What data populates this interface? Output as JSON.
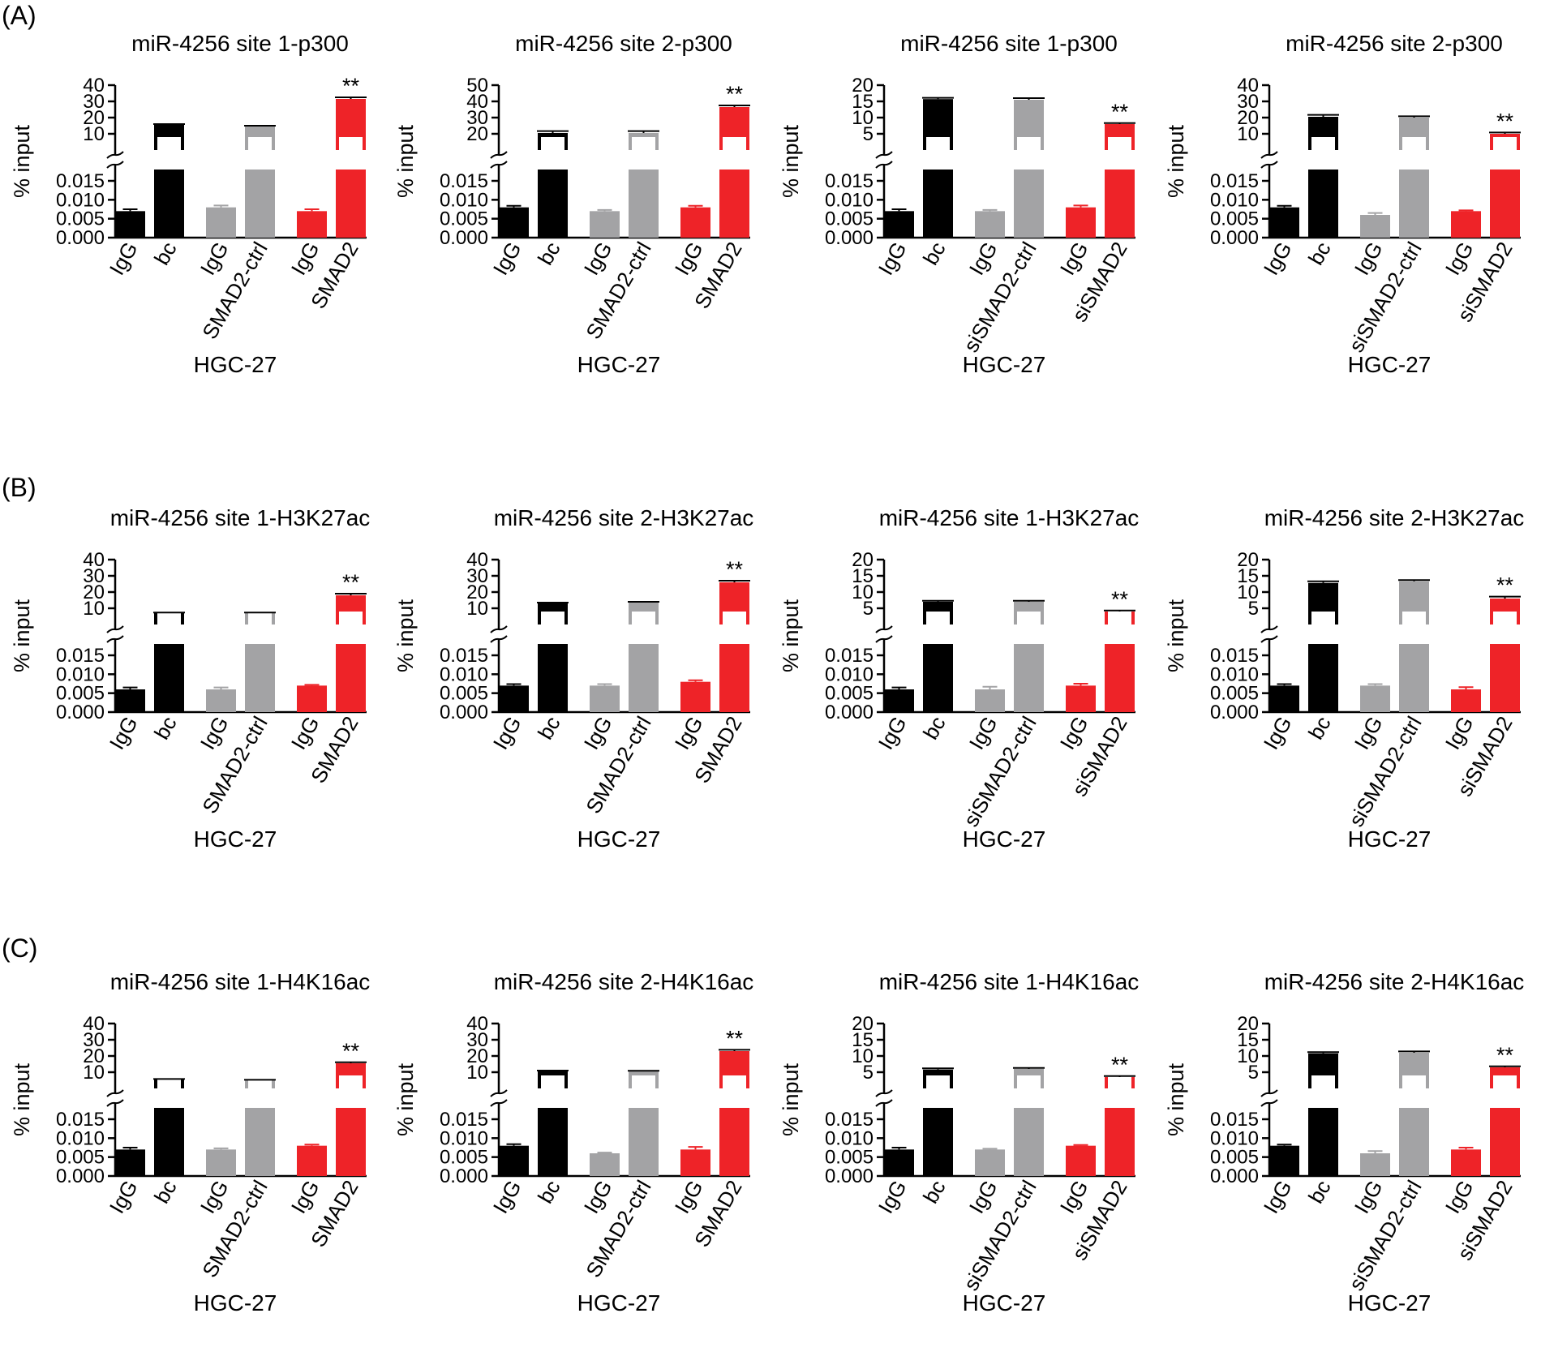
{
  "figure": {
    "panel_labels": [
      "(A)",
      "(B)",
      "(C)"
    ],
    "colors": {
      "black": "#000000",
      "gray": "#a3a3a5",
      "red": "#ee2328",
      "axis": "#000000"
    }
  },
  "chart_data": [
    {
      "type": "bar",
      "title": "miR-4256 site 1-p300",
      "ylabel": "% input",
      "xlabel": "HGC-27",
      "categories": [
        "IgG",
        "bc",
        "IgG",
        "SMAD2-ctrl",
        "IgG",
        "SMAD2"
      ],
      "values": [
        0.007,
        15.5,
        0.008,
        14.5,
        0.007,
        31.5
      ],
      "errors": [
        0.0005,
        0.5,
        0.0005,
        0.5,
        0.0005,
        1.0
      ],
      "colors": [
        "#000000",
        "#000000",
        "#a3a3a5",
        "#a3a3a5",
        "#ee2328",
        "#ee2328"
      ],
      "significance": [
        "",
        "",
        "",
        "",
        "",
        "**"
      ],
      "lower_axis": {
        "ylim": [
          0,
          0.018
        ],
        "ticks": [
          "0.000",
          "0.005",
          "0.010",
          "0.015"
        ],
        "tick_values": [
          0,
          0.005,
          0.01,
          0.015
        ]
      },
      "upper_axis": {
        "ylim": [
          0,
          40
        ],
        "ticks": [
          "10",
          "20",
          "30",
          "40"
        ],
        "tick_values": [
          10,
          20,
          30,
          40
        ]
      }
    },
    {
      "type": "bar",
      "title": "miR-4256 site 2-p300",
      "ylabel": "% input",
      "xlabel": "HGC-27",
      "categories": [
        "IgG",
        "bc",
        "IgG",
        "SMAD2-ctrl",
        "IgG",
        "SMAD2"
      ],
      "values": [
        0.008,
        20.5,
        0.007,
        20.5,
        0.008,
        36.5
      ],
      "errors": [
        0.0004,
        1.2,
        0.0003,
        1.2,
        0.0004,
        1.0
      ],
      "colors": [
        "#000000",
        "#000000",
        "#a3a3a5",
        "#a3a3a5",
        "#ee2328",
        "#ee2328"
      ],
      "significance": [
        "",
        "",
        "",
        "",
        "",
        "**"
      ],
      "lower_axis": {
        "ylim": [
          0,
          0.018
        ],
        "ticks": [
          "0.000",
          "0.005",
          "0.010",
          "0.015"
        ],
        "tick_values": [
          0,
          0.005,
          0.01,
          0.015
        ]
      },
      "upper_axis": {
        "ylim": [
          10,
          50
        ],
        "ticks": [
          "20",
          "30",
          "40",
          "50"
        ],
        "tick_values": [
          20,
          30,
          40,
          50
        ]
      }
    },
    {
      "type": "bar",
      "title": "miR-4256 site 1-p300",
      "ylabel": "% input",
      "xlabel": "HGC-27",
      "categories": [
        "IgG",
        "bc",
        "IgG",
        "siSMAD2-ctrl",
        "IgG",
        "siSMAD2"
      ],
      "values": [
        0.007,
        15.7,
        0.007,
        15.5,
        0.008,
        8.0
      ],
      "errors": [
        0.0005,
        0.4,
        0.0003,
        0.5,
        0.0005,
        0.3
      ],
      "colors": [
        "#000000",
        "#000000",
        "#a3a3a5",
        "#a3a3a5",
        "#ee2328",
        "#ee2328"
      ],
      "significance": [
        "",
        "",
        "",
        "",
        "",
        "**"
      ],
      "lower_axis": {
        "ylim": [
          0,
          0.018
        ],
        "ticks": [
          "0.000",
          "0.005",
          "0.010",
          "0.015"
        ],
        "tick_values": [
          0,
          0.005,
          0.01,
          0.015
        ]
      },
      "upper_axis": {
        "ylim": [
          0,
          20
        ],
        "ticks": [
          "5",
          "10",
          "15",
          "20"
        ],
        "tick_values": [
          5,
          10,
          15,
          20
        ]
      }
    },
    {
      "type": "bar",
      "title": "miR-4256 site 2-p300",
      "ylabel": "% input",
      "xlabel": "HGC-27",
      "categories": [
        "IgG",
        "bc",
        "IgG",
        "siSMAD2-ctrl",
        "IgG",
        "siSMAD2"
      ],
      "values": [
        0.008,
        20.5,
        0.006,
        20.0,
        0.007,
        10.0
      ],
      "errors": [
        0.0004,
        1.2,
        0.0005,
        0.8,
        0.0002,
        0.8
      ],
      "colors": [
        "#000000",
        "#000000",
        "#a3a3a5",
        "#a3a3a5",
        "#ee2328",
        "#ee2328"
      ],
      "significance": [
        "",
        "",
        "",
        "",
        "",
        "**"
      ],
      "lower_axis": {
        "ylim": [
          0,
          0.018
        ],
        "ticks": [
          "0.000",
          "0.005",
          "0.010",
          "0.015"
        ],
        "tick_values": [
          0,
          0.005,
          0.01,
          0.015
        ]
      },
      "upper_axis": {
        "ylim": [
          0,
          40
        ],
        "ticks": [
          "10",
          "20",
          "30",
          "40"
        ],
        "tick_values": [
          10,
          20,
          30,
          40
        ]
      }
    },
    {
      "type": "bar",
      "title": "miR-4256 site 1-H3K27ac",
      "ylabel": "% input",
      "xlabel": "HGC-27",
      "categories": [
        "IgG",
        "bc",
        "IgG",
        "SMAD2-ctrl",
        "IgG",
        "SMAD2"
      ],
      "values": [
        0.006,
        7.0,
        0.006,
        7.0,
        0.007,
        18.0
      ],
      "errors": [
        0.0005,
        0.4,
        0.0005,
        0.4,
        0.0002,
        1.0
      ],
      "colors": [
        "#000000",
        "#000000",
        "#a3a3a5",
        "#a3a3a5",
        "#ee2328",
        "#ee2328"
      ],
      "significance": [
        "",
        "",
        "",
        "",
        "",
        "**"
      ],
      "lower_axis": {
        "ylim": [
          0,
          0.018
        ],
        "ticks": [
          "0.000",
          "0.005",
          "0.010",
          "0.015"
        ],
        "tick_values": [
          0,
          0.005,
          0.01,
          0.015
        ]
      },
      "upper_axis": {
        "ylim": [
          0,
          40
        ],
        "ticks": [
          "10",
          "20",
          "30",
          "40"
        ],
        "tick_values": [
          10,
          20,
          30,
          40
        ]
      }
    },
    {
      "type": "bar",
      "title": "miR-4256 site 2-H3K27ac",
      "ylabel": "% input",
      "xlabel": "HGC-27",
      "categories": [
        "IgG",
        "bc",
        "IgG",
        "SMAD2-ctrl",
        "IgG",
        "SMAD2"
      ],
      "values": [
        0.007,
        13.0,
        0.007,
        13.5,
        0.008,
        26.0
      ],
      "errors": [
        0.0004,
        0.5,
        0.0004,
        0.5,
        0.0004,
        1.0
      ],
      "colors": [
        "#000000",
        "#000000",
        "#a3a3a5",
        "#a3a3a5",
        "#ee2328",
        "#ee2328"
      ],
      "significance": [
        "",
        "",
        "",
        "",
        "",
        "**"
      ],
      "lower_axis": {
        "ylim": [
          0,
          0.018
        ],
        "ticks": [
          "0.000",
          "0.005",
          "0.010",
          "0.015"
        ],
        "tick_values": [
          0,
          0.005,
          0.01,
          0.015
        ]
      },
      "upper_axis": {
        "ylim": [
          0,
          40
        ],
        "ticks": [
          "10",
          "20",
          "30",
          "40"
        ],
        "tick_values": [
          10,
          20,
          30,
          40
        ]
      }
    },
    {
      "type": "bar",
      "title": "miR-4256 site 1-H3K27ac",
      "ylabel": "% input",
      "xlabel": "HGC-27",
      "categories": [
        "IgG",
        "bc",
        "IgG",
        "siSMAD2-ctrl",
        "IgG",
        "siSMAD2"
      ],
      "values": [
        0.006,
        7.0,
        0.006,
        7.0,
        0.007,
        4.0
      ],
      "errors": [
        0.0005,
        0.3,
        0.0007,
        0.3,
        0.0005,
        0.3
      ],
      "colors": [
        "#000000",
        "#000000",
        "#a3a3a5",
        "#a3a3a5",
        "#ee2328",
        "#ee2328"
      ],
      "significance": [
        "",
        "",
        "",
        "",
        "",
        "**"
      ],
      "lower_axis": {
        "ylim": [
          0,
          0.018
        ],
        "ticks": [
          "0.000",
          "0.005",
          "0.010",
          "0.015"
        ],
        "tick_values": [
          0,
          0.005,
          0.01,
          0.015
        ]
      },
      "upper_axis": {
        "ylim": [
          0,
          20
        ],
        "ticks": [
          "5",
          "10",
          "15",
          "20"
        ],
        "tick_values": [
          5,
          10,
          15,
          20
        ]
      }
    },
    {
      "type": "bar",
      "title": "miR-4256 site 2-H3K27ac",
      "ylabel": "% input",
      "xlabel": "HGC-27",
      "categories": [
        "IgG",
        "bc",
        "IgG",
        "siSMAD2-ctrl",
        "IgG",
        "siSMAD2"
      ],
      "values": [
        0.007,
        12.8,
        0.007,
        13.3,
        0.006,
        8.0
      ],
      "errors": [
        0.0004,
        0.5,
        0.0004,
        0.4,
        0.0006,
        0.6
      ],
      "colors": [
        "#000000",
        "#000000",
        "#a3a3a5",
        "#a3a3a5",
        "#ee2328",
        "#ee2328"
      ],
      "significance": [
        "",
        "",
        "",
        "",
        "",
        "**"
      ],
      "lower_axis": {
        "ylim": [
          0,
          0.018
        ],
        "ticks": [
          "0.000",
          "0.005",
          "0.010",
          "0.015"
        ],
        "tick_values": [
          0,
          0.005,
          0.01,
          0.015
        ]
      },
      "upper_axis": {
        "ylim": [
          0,
          20
        ],
        "ticks": [
          "5",
          "10",
          "15",
          "20"
        ],
        "tick_values": [
          5,
          10,
          15,
          20
        ]
      }
    },
    {
      "type": "bar",
      "title": "miR-4256 site 1-H4K16ac",
      "ylabel": "% input",
      "xlabel": "HGC-27",
      "categories": [
        "IgG",
        "bc",
        "IgG",
        "SMAD2-ctrl",
        "IgG",
        "SMAD2"
      ],
      "values": [
        0.007,
        5.5,
        0.007,
        5.0,
        0.008,
        15.5
      ],
      "errors": [
        0.0005,
        0.3,
        0.0003,
        0.3,
        0.0003,
        0.6
      ],
      "colors": [
        "#000000",
        "#000000",
        "#a3a3a5",
        "#a3a3a5",
        "#ee2328",
        "#ee2328"
      ],
      "significance": [
        "",
        "",
        "",
        "",
        "",
        "**"
      ],
      "lower_axis": {
        "ylim": [
          0,
          0.018
        ],
        "ticks": [
          "0.000",
          "0.005",
          "0.010",
          "0.015"
        ],
        "tick_values": [
          0,
          0.005,
          0.01,
          0.015
        ]
      },
      "upper_axis": {
        "ylim": [
          0,
          40
        ],
        "ticks": [
          "10",
          "20",
          "30",
          "40"
        ],
        "tick_values": [
          10,
          20,
          30,
          40
        ]
      }
    },
    {
      "type": "bar",
      "title": "miR-4256 site 2-H4K16ac",
      "ylabel": "% input",
      "xlabel": "HGC-27",
      "categories": [
        "IgG",
        "bc",
        "IgG",
        "SMAD2-ctrl",
        "IgG",
        "SMAD2"
      ],
      "values": [
        0.008,
        10.5,
        0.006,
        10.5,
        0.007,
        23.0
      ],
      "errors": [
        0.0004,
        0.5,
        0.0002,
        0.4,
        0.0007,
        0.8
      ],
      "colors": [
        "#000000",
        "#000000",
        "#a3a3a5",
        "#a3a3a5",
        "#ee2328",
        "#ee2328"
      ],
      "significance": [
        "",
        "",
        "",
        "",
        "",
        "**"
      ],
      "lower_axis": {
        "ylim": [
          0,
          0.018
        ],
        "ticks": [
          "0.000",
          "0.005",
          "0.010",
          "0.015"
        ],
        "tick_values": [
          0,
          0.005,
          0.01,
          0.015
        ]
      },
      "upper_axis": {
        "ylim": [
          0,
          40
        ],
        "ticks": [
          "10",
          "20",
          "30",
          "40"
        ],
        "tick_values": [
          10,
          20,
          30,
          40
        ]
      }
    },
    {
      "type": "bar",
      "title": "miR-4256 site 1-H4K16ac",
      "ylabel": "% input",
      "xlabel": "HGC-27",
      "categories": [
        "IgG",
        "bc",
        "IgG",
        "siSMAD2-ctrl",
        "IgG",
        "siSMAD2"
      ],
      "values": [
        0.007,
        5.8,
        0.007,
        6.0,
        0.008,
        3.5
      ],
      "errors": [
        0.0005,
        0.4,
        0.0002,
        0.3,
        0.0002,
        0.3
      ],
      "colors": [
        "#000000",
        "#000000",
        "#a3a3a5",
        "#a3a3a5",
        "#ee2328",
        "#ee2328"
      ],
      "significance": [
        "",
        "",
        "",
        "",
        "",
        "**"
      ],
      "lower_axis": {
        "ylim": [
          0,
          0.018
        ],
        "ticks": [
          "0.000",
          "0.005",
          "0.010",
          "0.015"
        ],
        "tick_values": [
          0,
          0.005,
          0.01,
          0.015
        ]
      },
      "upper_axis": {
        "ylim": [
          0,
          20
        ],
        "ticks": [
          "5",
          "10",
          "15",
          "20"
        ],
        "tick_values": [
          5,
          10,
          15,
          20
        ]
      }
    },
    {
      "type": "bar",
      "title": "miR-4256 site 2-H4K16ac",
      "ylabel": "% input",
      "xlabel": "HGC-27",
      "categories": [
        "IgG",
        "bc",
        "IgG",
        "siSMAD2-ctrl",
        "IgG",
        "siSMAD2"
      ],
      "values": [
        0.008,
        10.8,
        0.006,
        11.0,
        0.007,
        6.5
      ],
      "errors": [
        0.0003,
        0.4,
        0.0006,
        0.4,
        0.0005,
        0.3
      ],
      "colors": [
        "#000000",
        "#000000",
        "#a3a3a5",
        "#a3a3a5",
        "#ee2328",
        "#ee2328"
      ],
      "significance": [
        "",
        "",
        "",
        "",
        "",
        "**"
      ],
      "lower_axis": {
        "ylim": [
          0,
          0.018
        ],
        "ticks": [
          "0.000",
          "0.005",
          "0.010",
          "0.015"
        ],
        "tick_values": [
          0,
          0.005,
          0.01,
          0.015
        ]
      },
      "upper_axis": {
        "ylim": [
          0,
          20
        ],
        "ticks": [
          "5",
          "10",
          "15",
          "20"
        ],
        "tick_values": [
          5,
          10,
          15,
          20
        ]
      }
    }
  ]
}
